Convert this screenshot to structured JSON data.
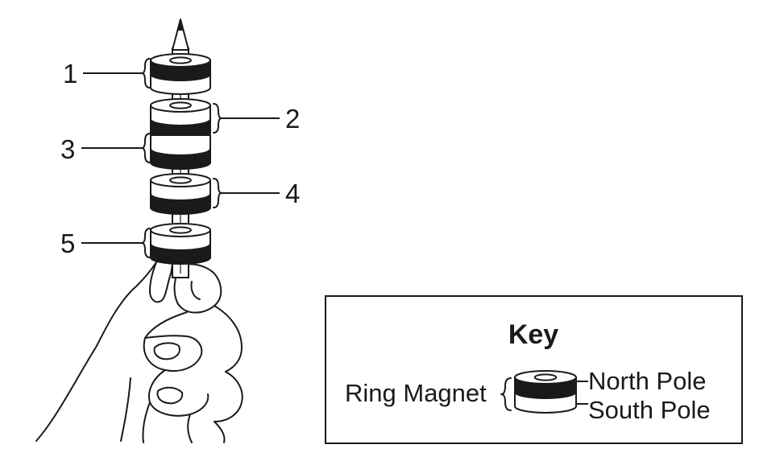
{
  "stack_labels": [
    "1",
    "2",
    "3",
    "4",
    "5"
  ],
  "key": {
    "title": "Key",
    "item_label": "Ring Magnet",
    "north_label": "North Pole",
    "south_label": "South Pole"
  },
  "colors": {
    "ink": "#1a1a1a",
    "north_fill": "#1a1a1a",
    "south_fill": "#ffffff"
  }
}
